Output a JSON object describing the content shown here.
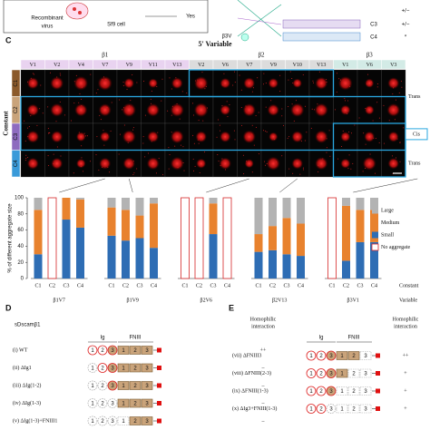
{
  "panel_top": {
    "recombinant": [
      "Recombinant",
      "virus"
    ],
    "cell": "Sf9 cell",
    "yes": "Yes",
    "beta": "β3V",
    "constructs": [
      "C3",
      "C4"
    ],
    "results": [
      "+/−",
      "+/−",
      "*"
    ]
  },
  "panel_c": {
    "letter": "C",
    "title": "5' Variable",
    "groups": [
      {
        "name": "β1",
        "color": "#e9d3f0",
        "labels": [
          "V1",
          "V2",
          "V4",
          "V7",
          "V9",
          "V11",
          "V13"
        ]
      },
      {
        "name": "β2",
        "color": "#dcdcdc",
        "labels": [
          "V2",
          "V6",
          "V7",
          "V9",
          "V10",
          "V13"
        ]
      },
      {
        "name": "β3",
        "color": "#d3ebe6",
        "labels": [
          "V1",
          "V6",
          "V3"
        ]
      }
    ],
    "constant_label": "Constant",
    "rows": [
      {
        "name": "C1",
        "color": "#8b5a2b"
      },
      {
        "name": "C2",
        "color": "#c9a37a"
      },
      {
        "name": "C3",
        "color": "#8e6bbf"
      },
      {
        "name": "C4",
        "color": "#3a9ad9"
      }
    ],
    "side_labels": [
      "Trans",
      "Cis",
      "Trans"
    ]
  },
  "chart_data": {
    "type": "stacked_bar",
    "y_label": "% of different aggregate size",
    "categories": [
      "C1",
      "C2",
      "C3",
      "C4",
      "C1",
      "C2",
      "C3",
      "C4",
      "C1",
      "C2",
      "C3",
      "C4",
      "C1",
      "C2",
      "C3",
      "C4",
      "C1",
      "C2",
      "C3",
      "C4"
    ],
    "groups": [
      "β1V7",
      "β1V9",
      "β2V6",
      "β2V13",
      "β3V1"
    ],
    "x_labels": [
      "Constant",
      "Variable"
    ],
    "ylim": [
      0,
      100
    ],
    "yticks": [
      0,
      20,
      40,
      60,
      80,
      100
    ],
    "series": [
      {
        "name": "Large",
        "color": "#b3b3b3",
        "values": [
          15,
          null,
          0,
          2,
          12,
          15,
          22,
          7,
          null,
          null,
          7,
          null,
          45,
          35,
          25,
          32,
          null,
          10,
          15,
          15
        ]
      },
      {
        "name": "Medium",
        "color": "#e8822e",
        "values": [
          55,
          null,
          27,
          35,
          35,
          38,
          28,
          55,
          null,
          null,
          38,
          null,
          22,
          30,
          45,
          40,
          null,
          68,
          40,
          40
        ]
      },
      {
        "name": "Small",
        "color": "#2e6db4",
        "values": [
          30,
          null,
          73,
          63,
          53,
          47,
          50,
          38,
          null,
          null,
          55,
          null,
          33,
          35,
          30,
          28,
          null,
          22,
          45,
          45
        ]
      },
      {
        "name": "No aggregate",
        "color": "#d62728",
        "outline": true,
        "values": [
          null,
          100,
          null,
          null,
          null,
          null,
          null,
          null,
          100,
          100,
          null,
          100,
          null,
          null,
          null,
          null,
          100,
          null,
          null,
          null
        ]
      }
    ]
  },
  "panel_d": {
    "letter": "D",
    "protein": "sDscamβ1",
    "ig": "Ig",
    "fn": "FNIII",
    "interaction": [
      "Homophilic",
      "interaction"
    ],
    "ig_domains": [
      "1",
      "2",
      "3"
    ],
    "fn_domains": [
      "1",
      "2",
      "3"
    ],
    "rows": [
      {
        "label": "(i)  WT",
        "result": "++",
        "present": [
          true,
          true,
          true,
          true,
          true,
          true
        ]
      },
      {
        "label": "(ii)  ΔIg1",
        "result": "–",
        "present": [
          false,
          true,
          true,
          true,
          true,
          true
        ]
      },
      {
        "label": "(iii)  ΔIg(1-2)",
        "result": "–",
        "present": [
          false,
          false,
          true,
          true,
          true,
          true
        ]
      },
      {
        "label": "(iv)  ΔIg(1-3)",
        "result": "–",
        "present": [
          false,
          false,
          false,
          true,
          true,
          true
        ]
      },
      {
        "label": "(v)  ΔIg(1-3)+FNIII1",
        "result": "–",
        "present": [
          false,
          false,
          false,
          false,
          true,
          true
        ]
      }
    ]
  },
  "panel_e": {
    "letter": "E",
    "ig": "Ig",
    "fn": "FNIII",
    "interaction": [
      "Homophilic",
      "interaction"
    ],
    "ig_domains": [
      "1",
      "2",
      "3"
    ],
    "fn_domains": [
      "1",
      "2",
      "3"
    ],
    "rows": [
      {
        "label": "(vii)  ΔFNIII3",
        "result": "++",
        "present": [
          true,
          true,
          true,
          true,
          true,
          false
        ]
      },
      {
        "label": "(viii)  ΔFNIII(2-3)",
        "result": "+",
        "present": [
          true,
          true,
          true,
          true,
          false,
          false
        ]
      },
      {
        "label": "(ix)  ΔFNIII(1-3)",
        "result": "+",
        "present": [
          true,
          true,
          true,
          false,
          false,
          false
        ]
      },
      {
        "label": "(x)  ΔIg3+FNIII(1-3)",
        "result": "+",
        "present": [
          true,
          true,
          false,
          false,
          false,
          false
        ]
      }
    ]
  }
}
